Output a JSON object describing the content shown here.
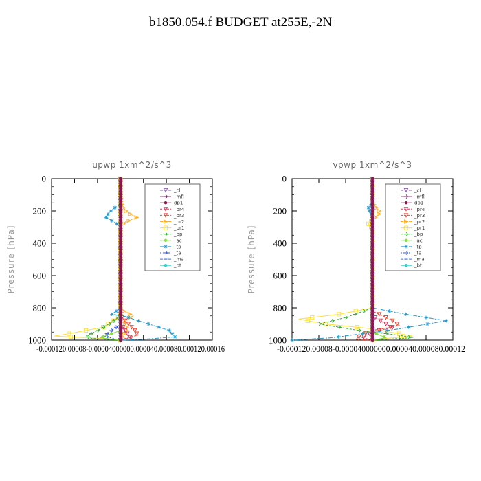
{
  "title": "b1850.054.f  BUDGET at255E,-2N",
  "legend_entries": [
    {
      "name": "_cl",
      "color": "#8c5fb3",
      "marker": "triangle-down",
      "dash": "4,2"
    },
    {
      "name": "_mfl",
      "color": "#6b1e5a",
      "marker": "arrow-right",
      "dash": "none"
    },
    {
      "name": "dp1",
      "color": "#8a1650",
      "marker": "dot",
      "dash": "none"
    },
    {
      "name": "_pr4",
      "color": "#d8375c",
      "marker": "triangle-down",
      "dash": "3,2"
    },
    {
      "name": "_pr3",
      "color": "#ee4433",
      "marker": "triangle-down",
      "dash": "3,2"
    },
    {
      "name": "_pr2",
      "color": "#ffaa22",
      "marker": "triangle-right",
      "dash": "4,2"
    },
    {
      "name": "_pr1",
      "color": "#ffe033",
      "marker": "square",
      "dash": "none"
    },
    {
      "name": "_bp",
      "color": "#33aa33",
      "marker": "arrow-right",
      "dash": "3,2"
    },
    {
      "name": "_ac",
      "color": "#88dd44",
      "marker": "dot",
      "dash": "none"
    },
    {
      "name": "_tp",
      "color": "#2299cc",
      "marker": "star",
      "dash": "6,2,2,2"
    },
    {
      "name": "_ta",
      "color": "#3355dd",
      "marker": "arrow-right",
      "dash": "2,2"
    },
    {
      "name": "_ma",
      "color": "#3377ee",
      "marker": "dash",
      "dash": "4,2"
    },
    {
      "name": "_bt",
      "color": "#33cccc",
      "marker": "dot",
      "dash": "none"
    }
  ],
  "chart_data": [
    {
      "type": "line",
      "title": "upwp   1xm^2/s^3",
      "ylabel": "Pressure [hPa]",
      "ylim": [
        1000,
        0
      ],
      "xlim": [
        -0.00012,
        0.00016
      ],
      "yticks": [
        "0",
        "200",
        "400",
        "600",
        "800",
        "1000"
      ],
      "xticks": [
        "-0.00012",
        "-0.00008",
        "-0.00004",
        "0",
        "0.00004",
        "0.00008",
        "0.00012",
        "0.00016"
      ],
      "xtick_label": "-0.000120.00008-0.00004000000.000040.000080.000120.00016",
      "series": [
        {
          "name": "_pr2",
          "points": [
            [
              0,
              0
            ],
            [
              0,
              100
            ],
            [
              4e-06,
              175
            ],
            [
              1.2e-05,
              210
            ],
            [
              2.8e-05,
              240
            ],
            [
              8e-06,
              270
            ],
            [
              0,
              300
            ],
            [
              0,
              800
            ],
            [
              6e-06,
              820
            ],
            [
              2.2e-05,
              850
            ],
            [
              5e-06,
              880
            ],
            [
              1.2e-05,
              930
            ],
            [
              0,
              1000
            ]
          ]
        },
        {
          "name": "_pr1",
          "points": [
            [
              0,
              0
            ],
            [
              0,
              800
            ],
            [
              0,
              850
            ],
            [
              -3e-05,
              920
            ],
            [
              -9e-05,
              960
            ],
            [
              -0.000115,
              975
            ],
            [
              -3e-05,
              990
            ],
            [
              0,
              1000
            ]
          ]
        },
        {
          "name": "_pr3",
          "points": [
            [
              0,
              0
            ],
            [
              0,
              850
            ],
            [
              2.5e-05,
              940
            ],
            [
              3e-05,
              970
            ],
            [
              8e-06,
              990
            ],
            [
              0,
              1000
            ]
          ]
        },
        {
          "name": "_pr4",
          "points": [
            [
              0,
              0
            ],
            [
              0,
              900
            ],
            [
              1.2e-05,
              960
            ],
            [
              1.8e-05,
              985
            ],
            [
              0,
              1000
            ]
          ]
        },
        {
          "name": "_bp",
          "points": [
            [
              0,
              0
            ],
            [
              0,
              850
            ],
            [
              -2e-05,
              900
            ],
            [
              -4e-05,
              940
            ],
            [
              -6e-05,
              975
            ],
            [
              -5e-05,
              990
            ],
            [
              0,
              1000
            ]
          ]
        },
        {
          "name": "_tp",
          "points": [
            [
              0,
              0
            ],
            [
              0,
              160
            ],
            [
              -1e-05,
              180
            ],
            [
              -2e-05,
              210
            ],
            [
              -2.5e-05,
              240
            ],
            [
              -1e-05,
              270
            ],
            [
              0,
              300
            ],
            [
              0,
              800
            ],
            [
              -1.5e-05,
              840
            ],
            [
              5e-06,
              850
            ],
            [
              4e-05,
              890
            ],
            [
              8.5e-05,
              940
            ],
            [
              9.5e-05,
              980
            ],
            [
              4e-05,
              995
            ],
            [
              0,
              1000
            ]
          ]
        },
        {
          "name": "_ta",
          "points": [
            [
              0,
              0
            ],
            [
              0,
              900
            ],
            [
              -3e-05,
              975
            ],
            [
              0,
              1000
            ]
          ]
        },
        {
          "name": "_ac",
          "points": [
            [
              0,
              0
            ],
            [
              0,
              940
            ],
            [
              -3.5e-05,
              985
            ],
            [
              0,
              1000
            ]
          ]
        },
        {
          "name": "_cl",
          "points": [
            [
              0,
              0
            ],
            [
              0,
              1000
            ]
          ]
        },
        {
          "name": "_mfl",
          "points": [
            [
              0,
              0
            ],
            [
              0,
              1000
            ]
          ]
        },
        {
          "name": "dp1",
          "points": [
            [
              0,
              0
            ],
            [
              0,
              1000
            ]
          ]
        }
      ]
    },
    {
      "type": "line",
      "title": "vpwp   1xm^2/s^3",
      "ylabel": "Pressure [hPa]",
      "ylim": [
        1000,
        0
      ],
      "xlim": [
        -0.00012,
        0.00012
      ],
      "yticks": [
        "0",
        "200",
        "400",
        "600",
        "800",
        "1000"
      ],
      "xticks": [
        "-0.00012",
        "-0.00008",
        "-0.00004",
        "0",
        "0.00004",
        "0.00008",
        "0.00012"
      ],
      "xtick_label": "-0.000120.00008-0.000040000000.000040.000080.00012",
      "series": [
        {
          "name": "_pr2",
          "points": [
            [
              0,
              0
            ],
            [
              0,
              150
            ],
            [
              6e-06,
              180
            ],
            [
              1.2e-05,
              210
            ],
            [
              4e-06,
              240
            ],
            [
              0,
              260
            ],
            [
              0,
              1000
            ]
          ]
        },
        {
          "name": "_pr1",
          "points": [
            [
              0,
              0
            ],
            [
              0,
              250
            ],
            [
              -6e-06,
              280
            ],
            [
              0,
              310
            ],
            [
              0,
              800
            ],
            [
              -5e-05,
              840
            ],
            [
              -0.00011,
              870
            ],
            [
              -7e-05,
              900
            ],
            [
              0,
              930
            ],
            [
              4e-05,
              960
            ],
            [
              6e-05,
              975
            ],
            [
              2e-05,
              990
            ],
            [
              0,
              1000
            ]
          ]
        },
        {
          "name": "_pr3",
          "points": [
            [
              0,
              0
            ],
            [
              0,
              820
            ],
            [
              3e-05,
              880
            ],
            [
              4e-05,
              910
            ],
            [
              0,
              940
            ],
            [
              -2e-05,
              980
            ],
            [
              -2.5e-05,
              995
            ],
            [
              0,
              1000
            ]
          ]
        },
        {
          "name": "_pr4",
          "points": [
            [
              0,
              0
            ],
            [
              0,
              850
            ],
            [
              2e-05,
              900
            ],
            [
              3e-05,
              920
            ],
            [
              0,
              950
            ],
            [
              -1.5e-05,
              985
            ],
            [
              0,
              1000
            ]
          ]
        },
        {
          "name": "_bp",
          "points": [
            [
              0,
              0
            ],
            [
              0,
              800
            ],
            [
              -4e-05,
              860
            ],
            [
              -8e-05,
              900
            ],
            [
              -2e-05,
              940
            ],
            [
              4e-05,
              970
            ],
            [
              6e-05,
              985
            ],
            [
              0,
              1000
            ]
          ]
        },
        {
          "name": "_tp",
          "points": [
            [
              0,
              0
            ],
            [
              0,
              150
            ],
            [
              -6e-06,
              180
            ],
            [
              -4e-06,
              210
            ],
            [
              0,
              230
            ],
            [
              0,
              800
            ],
            [
              5e-05,
              840
            ],
            [
              0.00011,
              880
            ],
            [
              4e-05,
              930
            ],
            [
              -1.5e-05,
              960
            ],
            [
              -6e-05,
              985
            ],
            [
              -0.00012,
              1000
            ]
          ]
        },
        {
          "name": "_ac",
          "points": [
            [
              0,
              0
            ],
            [
              0,
              950
            ],
            [
              2e-05,
              985
            ],
            [
              0,
              1000
            ]
          ]
        },
        {
          "name": "_cl",
          "points": [
            [
              0,
              0
            ],
            [
              0,
              1000
            ]
          ]
        },
        {
          "name": "_mfl",
          "points": [
            [
              0,
              0
            ],
            [
              0,
              1000
            ]
          ]
        },
        {
          "name": "dp1",
          "points": [
            [
              0,
              0
            ],
            [
              0,
              1000
            ]
          ]
        }
      ]
    }
  ]
}
